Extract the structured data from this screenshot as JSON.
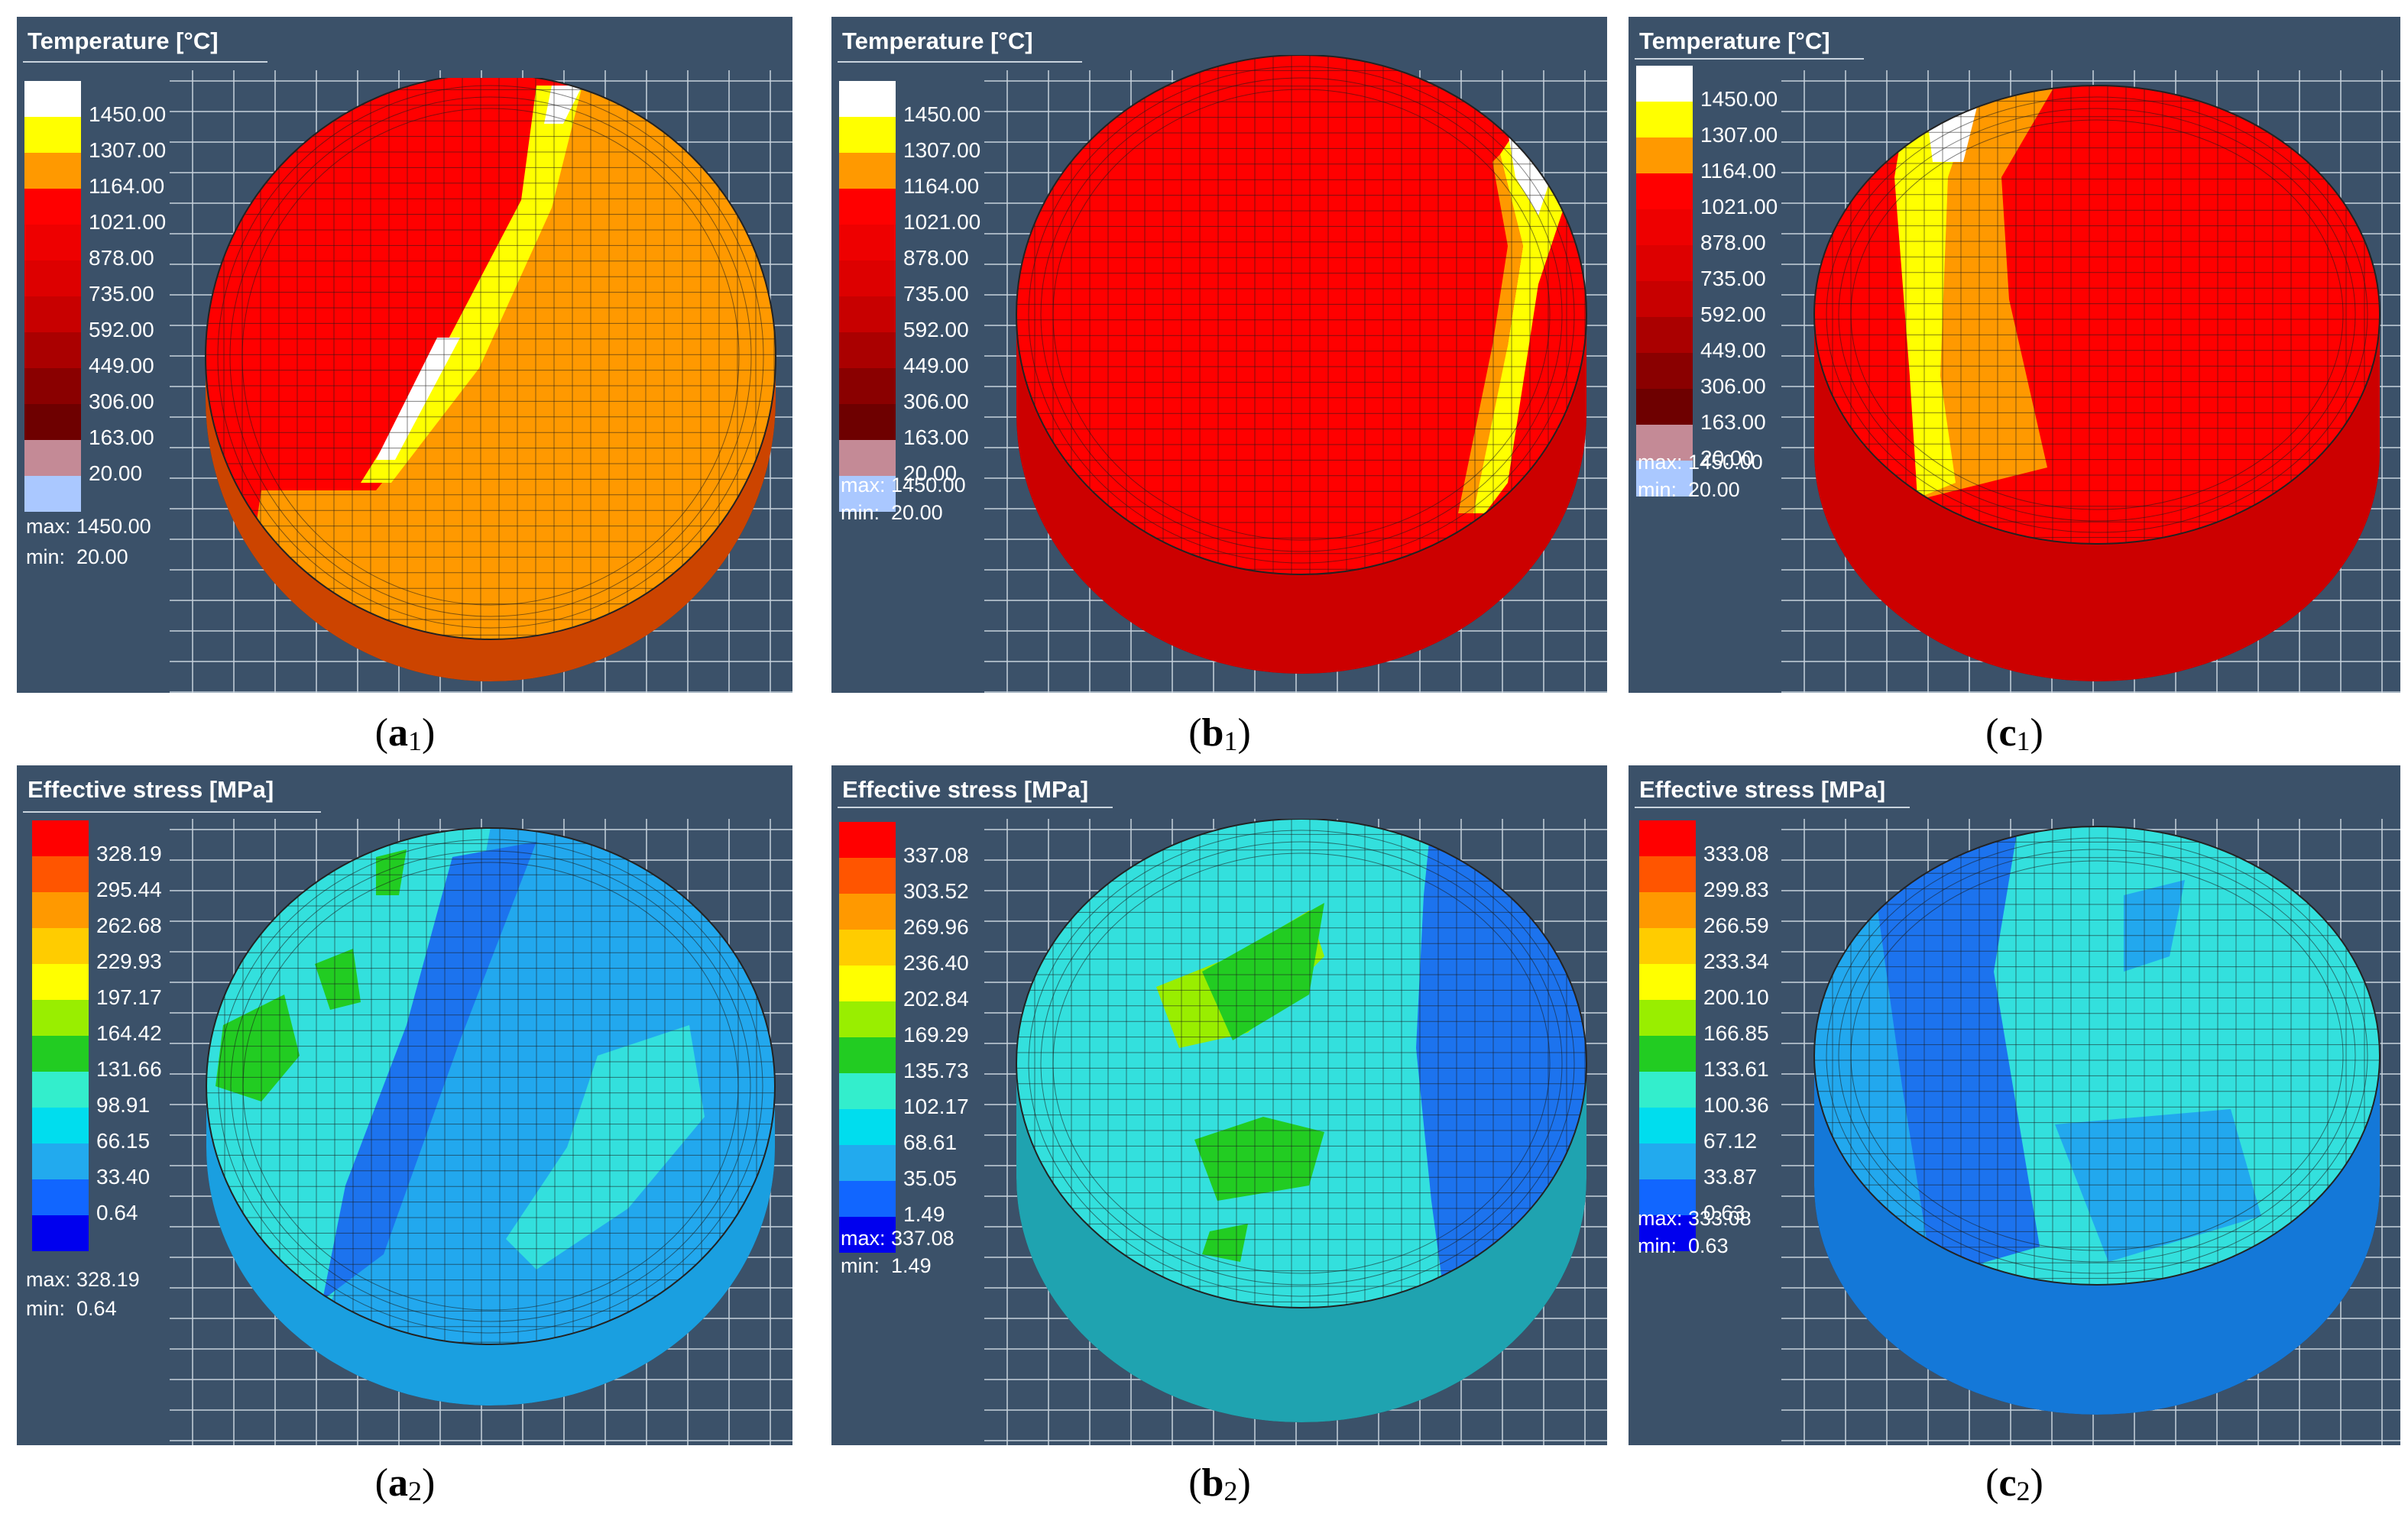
{
  "panels": [
    {
      "id": "a1",
      "title": "Temperature [°C]",
      "legend": [
        "1450.00",
        "1307.00",
        "1164.00",
        "1021.00",
        "878.00",
        "735.00",
        "592.00",
        "449.00",
        "306.00",
        "163.00",
        "20.00"
      ],
      "max_label": "max:",
      "max_value": "1450.00",
      "min_label": "min:",
      "min_value": "20.00",
      "caption_letter": "a",
      "caption_sub": "1"
    },
    {
      "id": "b1",
      "title": "Temperature [°C]",
      "legend": [
        "1450.00",
        "1307.00",
        "1164.00",
        "1021.00",
        "878.00",
        "735.00",
        "592.00",
        "449.00",
        "306.00",
        "163.00",
        "20.00"
      ],
      "max_label": "max:",
      "max_value": "1450.00",
      "min_label": "min:",
      "min_value": "20.00",
      "caption_letter": "b",
      "caption_sub": "1"
    },
    {
      "id": "c1",
      "title": "Temperature [°C]",
      "legend": [
        "1450.00",
        "1307.00",
        "1164.00",
        "1021.00",
        "878.00",
        "735.00",
        "592.00",
        "449.00",
        "306.00",
        "163.00",
        "20.00"
      ],
      "max_label": "max:",
      "max_value": "1450.00",
      "min_label": "min:",
      "min_value": "20.00",
      "caption_letter": "c",
      "caption_sub": "1"
    },
    {
      "id": "a2",
      "title": "Effective stress [MPa]",
      "legend": [
        "328.19",
        "295.44",
        "262.68",
        "229.93",
        "197.17",
        "164.42",
        "131.66",
        "98.91",
        "66.15",
        "33.40",
        "0.64"
      ],
      "max_label": "max:",
      "max_value": "328.19",
      "min_label": "min:",
      "min_value": "0.64",
      "caption_letter": "a",
      "caption_sub": "2"
    },
    {
      "id": "b2",
      "title": "Effective stress [MPa]",
      "legend": [
        "337.08",
        "303.52",
        "269.96",
        "236.40",
        "202.84",
        "169.29",
        "135.73",
        "102.17",
        "68.61",
        "35.05",
        "1.49"
      ],
      "max_label": "max:",
      "max_value": "337.08",
      "min_label": "min:",
      "min_value": "1.49",
      "caption_letter": "b",
      "caption_sub": "2"
    },
    {
      "id": "c2",
      "title": "Effective stress [MPa]",
      "legend": [
        "333.08",
        "299.83",
        "266.59",
        "233.34",
        "200.10",
        "166.85",
        "133.61",
        "100.36",
        "67.12",
        "33.87",
        "0.63"
      ],
      "max_label": "max:",
      "max_value": "333.08",
      "min_label": "min:",
      "min_value": "0.63",
      "caption_letter": "c",
      "caption_sub": "2"
    }
  ],
  "colors": {
    "panel_background": "#3b5169",
    "temperature_scale": [
      "#ffffff",
      "#ffff00",
      "#ff9900",
      "#ff0000",
      "#ee0000",
      "#dd0000",
      "#c80000",
      "#aa0000",
      "#8a0000",
      "#6e0000",
      "#c48a96",
      "#aac8ff"
    ],
    "stress_scale": [
      "#ff0000",
      "#ff5500",
      "#ff9900",
      "#ffcc00",
      "#ffff00",
      "#99ee00",
      "#22cc22",
      "#33eecc",
      "#00ddee",
      "#22aaee",
      "#1166ff",
      "#0000ee"
    ]
  }
}
